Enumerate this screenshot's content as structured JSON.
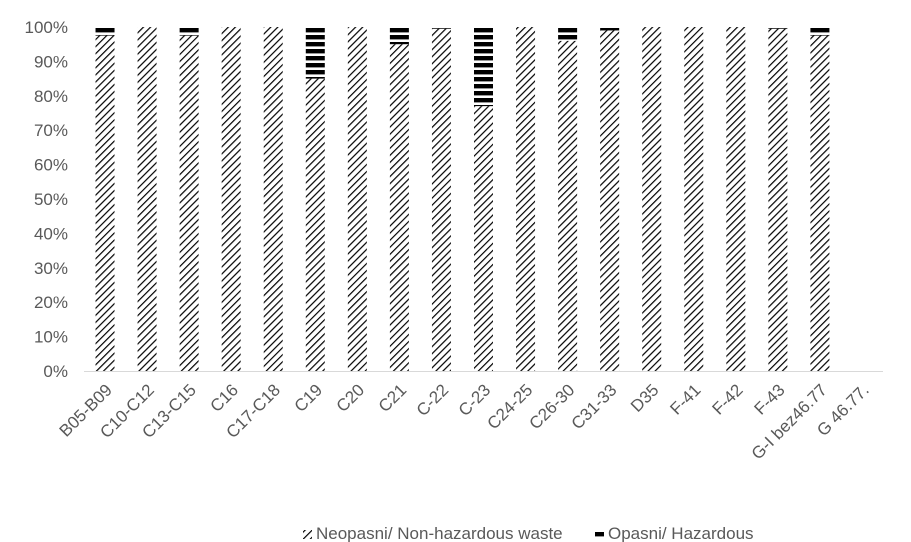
{
  "chart_data": {
    "type": "bar",
    "stacked": true,
    "percent": true,
    "title": "",
    "xlabel": "",
    "ylabel": "",
    "ylim": [
      0,
      100
    ],
    "yticks": [
      "0%",
      "10%",
      "20%",
      "30%",
      "40%",
      "50%",
      "60%",
      "70%",
      "80%",
      "90%",
      "100%"
    ],
    "categories": [
      "B05-B09",
      "C10-C12",
      "C13-C15",
      "C16",
      "C17-C18",
      "C19",
      "C20",
      "C21",
      "C-22",
      "C-23",
      "C24-25",
      "C26-30",
      "C31-33",
      "D35",
      "F-41",
      "F-42",
      "F-43",
      "G-I bez46.77",
      "G 46.77."
    ],
    "series": [
      {
        "name": "Neopasni/ Non-hazardous waste",
        "pattern": "diagonal-hatch",
        "color": "#000000",
        "values": [
          97.5,
          100,
          97.5,
          100,
          100,
          85,
          100,
          95,
          99.5,
          77,
          100,
          96,
          99,
          100,
          100,
          100,
          99.5,
          97.5,
          0
        ]
      },
      {
        "name": "Opasni/ Hazardous",
        "pattern": "horizontal-stripes",
        "color": "#000000",
        "values": [
          2.5,
          0,
          2.5,
          0,
          0,
          15,
          0,
          5,
          0.5,
          23,
          0,
          4,
          1,
          0,
          0,
          0,
          0.5,
          2.5,
          0
        ]
      }
    ],
    "grid": false,
    "legend_position": "bottom"
  }
}
